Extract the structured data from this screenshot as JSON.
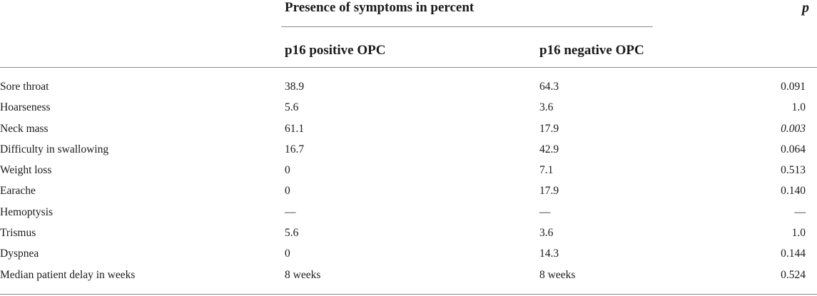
{
  "header": {
    "group_title": "Presence of symptoms in percent",
    "p_label": "p",
    "col_positive": "p16 positive OPC",
    "col_negative": "p16 negative OPC"
  },
  "rows": [
    {
      "label": "Sore throat",
      "positive": "38.9",
      "negative": "64.3",
      "p": "0.091"
    },
    {
      "label": "Hoarseness",
      "positive": "5.6",
      "negative": "3.6",
      "p": "1.0"
    },
    {
      "label": "Neck mass",
      "positive": "61.1",
      "negative": "17.9",
      "p": "0.003"
    },
    {
      "label": "Difficulty in swallowing",
      "positive": "16.7",
      "negative": "42.9",
      "p": "0.064"
    },
    {
      "label": "Weight loss",
      "positive": "0",
      "negative": "7.1",
      "p": "0.513"
    },
    {
      "label": "Earache",
      "positive": "0",
      "negative": "17.9",
      "p": "0.140"
    },
    {
      "label": "Hemoptysis",
      "positive": "—",
      "negative": "—",
      "p": "—"
    },
    {
      "label": "Trismus",
      "positive": "5.6",
      "negative": "3.6",
      "p": "1.0"
    },
    {
      "label": "Dyspnea",
      "positive": "0",
      "negative": "14.3",
      "p": "0.144"
    },
    {
      "label": "Median patient delay in weeks",
      "positive": "8 weeks",
      "negative": "8 weeks",
      "p": "0.524"
    }
  ]
}
